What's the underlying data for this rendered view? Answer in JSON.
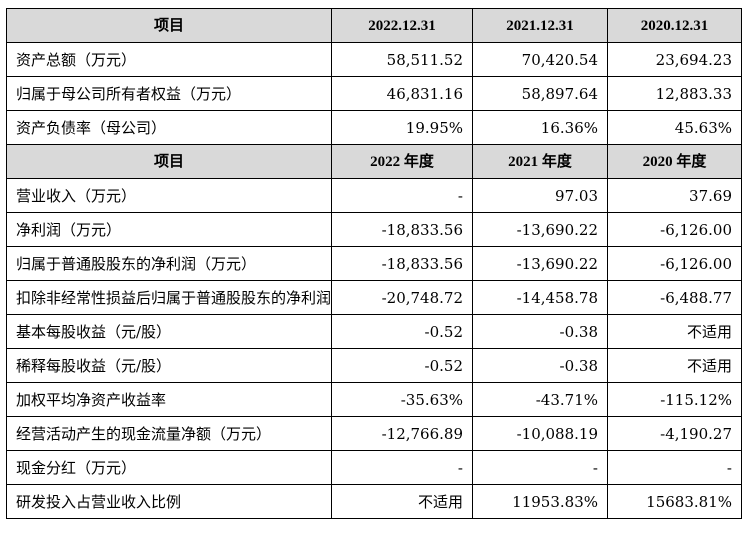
{
  "balance_header": [
    "项目",
    "2022.12.31",
    "2021.12.31",
    "2020.12.31"
  ],
  "balance_rows": [
    {
      "label": "资产总额（万元）",
      "v2022": "58,511.52",
      "v2021": "70,420.54",
      "v2020": "23,694.23"
    },
    {
      "label": "归属于母公司所有者权益（万元）",
      "v2022": "46,831.16",
      "v2021": "58,897.64",
      "v2020": "12,883.33"
    },
    {
      "label": "资产负债率（母公司）",
      "v2022": "19.95%",
      "v2021": "16.36%",
      "v2020": "45.63%"
    }
  ],
  "income_header": [
    "项目",
    "2022 年度",
    "2021 年度",
    "2020 年度"
  ],
  "income_rows": [
    {
      "label": "营业收入（万元）",
      "v2022": "-",
      "v2021": "97.03",
      "v2020": "37.69"
    },
    {
      "label": "净利润（万元）",
      "v2022": "-18,833.56",
      "v2021": "-13,690.22",
      "v2020": "-6,126.00"
    },
    {
      "label": "归属于普通股股东的净利润（万元）",
      "v2022": "-18,833.56",
      "v2021": "-13,690.22",
      "v2020": "-6,126.00"
    },
    {
      "label": "扣除非经常性损益后归属于普通股股东的净利润（万元）",
      "v2022": "-20,748.72",
      "v2021": "-14,458.78",
      "v2020": "-6,488.77"
    },
    {
      "label": "基本每股收益（元/股）",
      "v2022": "-0.52",
      "v2021": "-0.38",
      "v2020": "不适用"
    },
    {
      "label": "稀释每股收益（元/股）",
      "v2022": "-0.52",
      "v2021": "-0.38",
      "v2020": "不适用"
    },
    {
      "label": "加权平均净资产收益率",
      "v2022": "-35.63%",
      "v2021": "-43.71%",
      "v2020": "-115.12%"
    },
    {
      "label": "经营活动产生的现金流量净额（万元）",
      "v2022": "-12,766.89",
      "v2021": "-10,088.19",
      "v2020": "-4,190.27"
    },
    {
      "label": "现金分红（万元）",
      "v2022": "-",
      "v2021": "-",
      "v2020": "-"
    },
    {
      "label": "研发投入占营业收入比例",
      "v2022": "不适用",
      "v2021": "11953.83%",
      "v2020": "15683.81%"
    }
  ]
}
